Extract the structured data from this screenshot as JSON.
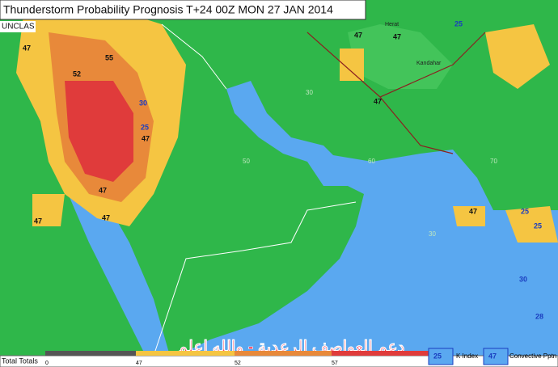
{
  "header": {
    "title": "Thunderstorm Probability Prognosis T+24 00Z MON 27 JAN 2014",
    "classification": "UNCLAS"
  },
  "map_labels": [
    "47",
    "52",
    "55",
    "30",
    "25",
    "47",
    "47",
    "47",
    "47",
    "47",
    "47",
    "47",
    "25",
    "47",
    "25",
    "30",
    "28",
    "25"
  ],
  "grid_labels": [
    "30",
    "50",
    "60",
    "70",
    "30"
  ],
  "places": [
    "Herat",
    "Kandahar"
  ],
  "watermark": "دعم العواصف الرعدية - والله اعلم",
  "legend": {
    "title": "Total Totals",
    "ticks": [
      "0",
      "47",
      "52",
      "57"
    ],
    "k_index": "K Index",
    "k_index_sample": "25",
    "convective": "Convective Pptn",
    "convective_sample": "47"
  }
}
